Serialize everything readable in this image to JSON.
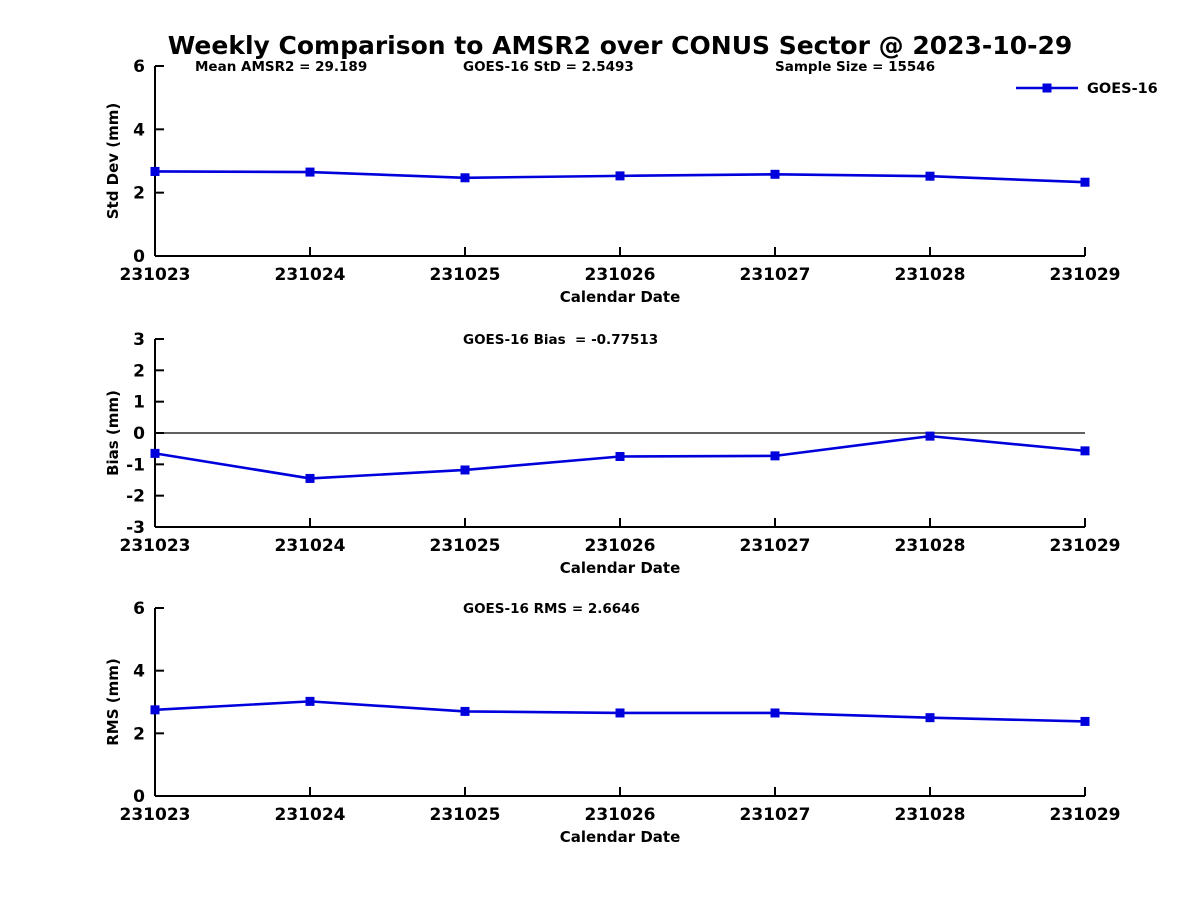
{
  "title": "Weekly Comparison to AMSR2 over CONUS Sector @ 2023-10-29",
  "colors": {
    "series": "#0000dd",
    "axis": "#000000",
    "zero_line": "#000000",
    "background": "#ffffff"
  },
  "legend": {
    "label": "GOES-16",
    "position": "top-right"
  },
  "chart_data": [
    {
      "type": "line",
      "title": "",
      "ylabel": "Std Dev (mm)",
      "xlabel": "Calendar Date",
      "ylim": [
        0,
        6
      ],
      "yticks": [
        0,
        2,
        4,
        6
      ],
      "grid": false,
      "zero_line": false,
      "show_legend": true,
      "categories": [
        "231023",
        "231024",
        "231025",
        "231026",
        "231027",
        "231028",
        "231029"
      ],
      "series": [
        {
          "name": "GOES-16",
          "values": [
            2.67,
            2.65,
            2.47,
            2.53,
            2.58,
            2.52,
            2.33
          ]
        }
      ],
      "annotations": [
        "Mean AMSR2 = 29.189",
        "GOES-16 StD = 2.5493",
        "Sample Size = 15546"
      ]
    },
    {
      "type": "line",
      "title": "",
      "ylabel": "Bias (mm)",
      "xlabel": "Calendar Date",
      "ylim": [
        -3,
        3
      ],
      "yticks": [
        -3,
        -2,
        -1,
        0,
        1,
        2,
        3
      ],
      "grid": false,
      "zero_line": true,
      "show_legend": false,
      "categories": [
        "231023",
        "231024",
        "231025",
        "231026",
        "231027",
        "231028",
        "231029"
      ],
      "series": [
        {
          "name": "GOES-16",
          "values": [
            -0.65,
            -1.45,
            -1.18,
            -0.75,
            -0.73,
            -0.1,
            -0.57
          ]
        }
      ],
      "annotations": [
        "GOES-16 Bias  = -0.77513"
      ]
    },
    {
      "type": "line",
      "title": "",
      "ylabel": "RMS (mm)",
      "xlabel": "Calendar Date",
      "ylim": [
        0,
        6
      ],
      "yticks": [
        0,
        2,
        4,
        6
      ],
      "grid": false,
      "zero_line": false,
      "show_legend": false,
      "categories": [
        "231023",
        "231024",
        "231025",
        "231026",
        "231027",
        "231028",
        "231029"
      ],
      "series": [
        {
          "name": "GOES-16",
          "values": [
            2.75,
            3.02,
            2.7,
            2.65,
            2.65,
            2.5,
            2.38
          ]
        }
      ],
      "annotations": [
        "GOES-16 RMS = 2.6646"
      ]
    }
  ]
}
